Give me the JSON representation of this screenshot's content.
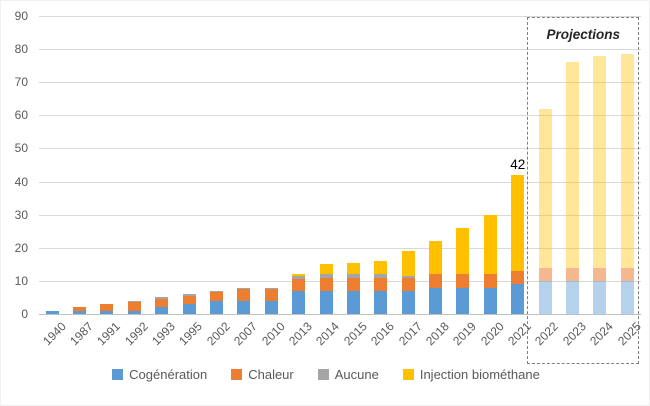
{
  "chart_data": {
    "type": "bar",
    "stacked": true,
    "title": "",
    "xlabel": "",
    "ylabel": "",
    "categories": [
      "1940",
      "1987",
      "1991",
      "1992",
      "1993",
      "1995",
      "2002",
      "2007",
      "2010",
      "2013",
      "2014",
      "2015",
      "2016",
      "2017",
      "2018",
      "2019",
      "2020",
      "2021",
      "2022",
      "2023",
      "2024",
      "2025"
    ],
    "series": [
      {
        "name": "Cogénération",
        "color": "#5B9BD5",
        "projection_color": "rgba(91,155,213,0.45)",
        "values": [
          1,
          1,
          1,
          1,
          2,
          3,
          4,
          4,
          4,
          7,
          7,
          7,
          7,
          7,
          8,
          8,
          8,
          9,
          10,
          10,
          10,
          10
        ]
      },
      {
        "name": "Chaleur",
        "color": "#ED7D31",
        "projection_color": "rgba(237,125,49,0.55)",
        "values": [
          0,
          1,
          2,
          2.5,
          2.5,
          2.5,
          2.5,
          3.5,
          3.5,
          3.5,
          4,
          4,
          4,
          4,
          4,
          4,
          4,
          4,
          4,
          4,
          4,
          4
        ]
      },
      {
        "name": "Aucune",
        "color": "#A5A5A5",
        "projection_color": "rgba(165,165,165,0.5)",
        "values": [
          0,
          0,
          0,
          0.5,
          0.5,
          0.5,
          0.5,
          0.5,
          0.5,
          1,
          1,
          1,
          1,
          0.5,
          0,
          0,
          0,
          0,
          0,
          0,
          0,
          0
        ]
      },
      {
        "name": "Injection biométhane",
        "color": "#FFC000",
        "projection_color": "rgba(255,192,0,0.4)",
        "values": [
          0,
          0,
          0,
          0,
          0,
          0,
          0,
          0,
          0,
          0.5,
          3,
          3.5,
          4,
          7.5,
          10,
          14,
          18,
          29,
          48,
          62,
          64,
          64.5
        ]
      }
    ],
    "totals_note": "2021 labeled 42; projections 2022=62, 2023=76, 2024=78, 2025=78.5",
    "ylim": [
      0,
      90
    ],
    "yticks": [
      0,
      10,
      20,
      30,
      40,
      50,
      60,
      70,
      80,
      90
    ],
    "grid": true,
    "legend_position": "bottom",
    "projection": {
      "label": "Projections",
      "categories": [
        "2022",
        "2023",
        "2024",
        "2025"
      ]
    },
    "annotations": [
      {
        "category": "2021",
        "text": "42"
      }
    ],
    "colors": {
      "grid": "#d9d9d9",
      "axis_line": "#bfbfbf",
      "tick_text": "#595959",
      "annotation_text": "#000000"
    }
  }
}
